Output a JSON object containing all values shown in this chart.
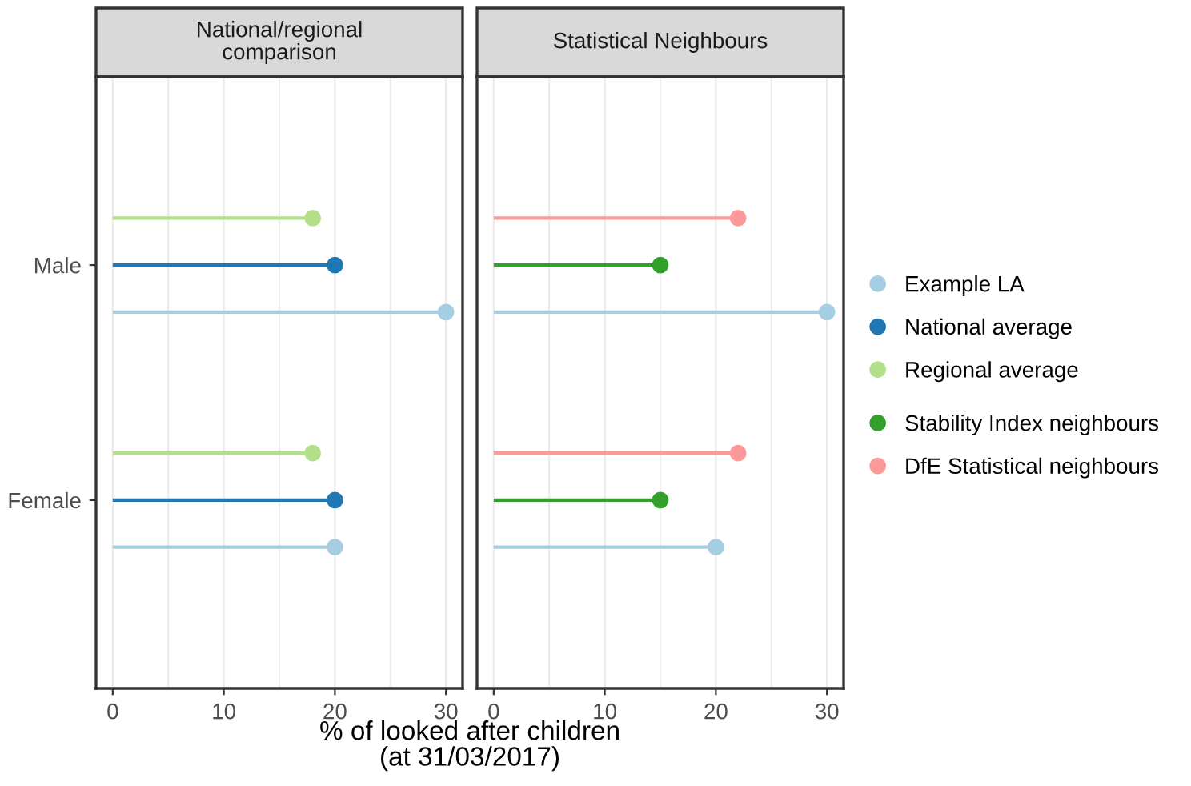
{
  "chart_data": [
    {
      "type": "lollipop",
      "title": "National/regional\ncomparison",
      "orientation": "horizontal",
      "categories": [
        "Male",
        "Female"
      ],
      "xlabel": "% of looked after children\n(at 31/03/2017)",
      "xlim": [
        -1.5,
        31.5
      ],
      "xticks": [
        0,
        10,
        20,
        30
      ],
      "grid": "x",
      "marker": "circle",
      "legend": "right",
      "series": [
        {
          "name": "Example LA",
          "color": "#a6cee3",
          "values": [
            30,
            20
          ]
        },
        {
          "name": "National average",
          "color": "#1f78b4",
          "values": [
            20,
            20
          ]
        },
        {
          "name": "Regional average",
          "color": "#b2df8a",
          "values": [
            18,
            18
          ]
        }
      ]
    },
    {
      "type": "lollipop",
      "title": "Statistical Neighbours",
      "orientation": "horizontal",
      "categories": [
        null,
        null
      ],
      "xlim": [
        -1.5,
        31.5
      ],
      "xticks": [
        0,
        10,
        20,
        30
      ],
      "grid": "x",
      "marker": "circle",
      "legend": "right",
      "tick_labels": "x",
      "series": [
        {
          "name": "Example LA",
          "color": "#a6cee3",
          "values": [
            30,
            20
          ]
        },
        {
          "name": "Stability Index neighbours",
          "color": "#33a02c",
          "values": [
            15,
            15
          ]
        },
        {
          "name": "DfE Statistical neighbours",
          "color": "#fb9a99",
          "values": [
            22,
            22
          ]
        }
      ]
    }
  ]
}
